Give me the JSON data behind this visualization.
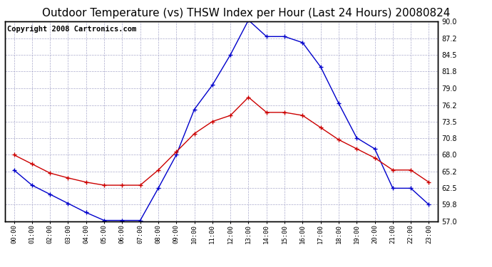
{
  "title": "Outdoor Temperature (vs) THSW Index per Hour (Last 24 Hours) 20080824",
  "copyright": "Copyright 2008 Cartronics.com",
  "hours": [
    "00:00",
    "01:00",
    "02:00",
    "03:00",
    "04:00",
    "05:00",
    "06:00",
    "07:00",
    "08:00",
    "09:00",
    "10:00",
    "11:00",
    "12:00",
    "13:00",
    "14:00",
    "15:00",
    "16:00",
    "17:00",
    "18:00",
    "19:00",
    "20:00",
    "21:00",
    "22:00",
    "23:00"
  ],
  "temp": [
    68.0,
    66.5,
    65.0,
    64.2,
    63.5,
    63.0,
    63.0,
    63.0,
    65.5,
    68.5,
    71.5,
    73.5,
    74.5,
    77.5,
    75.0,
    75.0,
    74.5,
    72.5,
    70.5,
    69.0,
    67.5,
    65.5,
    65.5,
    63.5
  ],
  "thsw": [
    65.5,
    63.0,
    61.5,
    60.0,
    58.5,
    57.2,
    57.2,
    57.2,
    62.5,
    68.0,
    75.5,
    79.5,
    84.5,
    90.2,
    87.5,
    87.5,
    86.5,
    82.5,
    76.5,
    70.8,
    69.0,
    62.5,
    62.5,
    59.8
  ],
  "temp_color": "#cc0000",
  "thsw_color": "#0000cc",
  "ylim": [
    57.0,
    90.0
  ],
  "yticks": [
    57.0,
    59.8,
    62.5,
    65.2,
    68.0,
    70.8,
    73.5,
    76.2,
    79.0,
    81.8,
    84.5,
    87.2,
    90.0
  ],
  "background_color": "#ffffff",
  "grid_color": "#aaaacc",
  "title_fontsize": 11,
  "copyright_fontsize": 7.5
}
